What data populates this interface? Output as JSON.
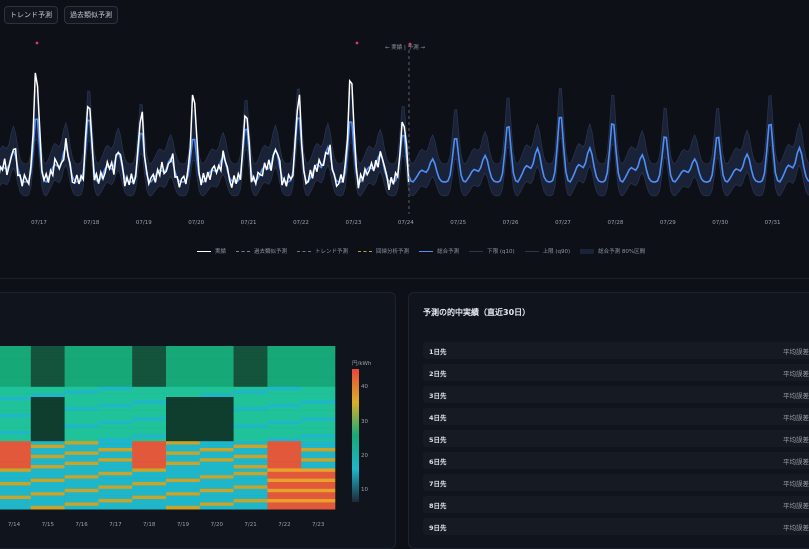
{
  "tabs": [
    "トレンド予測",
    "過去類似予測"
  ],
  "forecast": {
    "cut_label": "← 実績 | 予測 →",
    "x_labels": [
      "07/17",
      "07/18",
      "07/19",
      "07/20",
      "07/21",
      "07/22",
      "07/23",
      "07/24",
      "07/25",
      "07/26",
      "07/27",
      "07/28",
      "07/29",
      "07/30",
      "07/31"
    ],
    "legend": [
      "実績",
      "過去類似予測",
      "トレンド予測",
      "回帰分析予測",
      "総合予測",
      "下限 (q10)",
      "上限 (q90)",
      "総合予測 80%区間"
    ],
    "colors": {
      "actual": "#ffffff",
      "similar": "#7b8190",
      "trend": "#6f7686",
      "regression": "#b8a03a",
      "forecast": "#4f8ff7",
      "band": "#1a2438",
      "marker": "#e0356a"
    }
  },
  "heatmap": {
    "x_labels": [
      "7/14",
      "7/15",
      "7/16",
      "7/17",
      "7/18",
      "7/19",
      "7/20",
      "7/21",
      "7/22",
      "7/23"
    ],
    "colorbar_title": "円/kWh",
    "colorbar_ticks": [
      "40",
      "30",
      "20",
      "10"
    ]
  },
  "accuracy": {
    "title": "予測の的中実績（直近30日）",
    "rows": [
      {
        "label": "1日先",
        "value": "平均誤差"
      },
      {
        "label": "2日先",
        "value": "平均誤差"
      },
      {
        "label": "3日先",
        "value": "平均誤差"
      },
      {
        "label": "4日先",
        "value": "平均誤差"
      },
      {
        "label": "5日先",
        "value": "平均誤差"
      },
      {
        "label": "6日先",
        "value": "平均誤差"
      },
      {
        "label": "7日先",
        "value": "平均誤差"
      },
      {
        "label": "8日先",
        "value": "平均誤差"
      },
      {
        "label": "9日先",
        "value": "平均誤差"
      }
    ]
  }
}
